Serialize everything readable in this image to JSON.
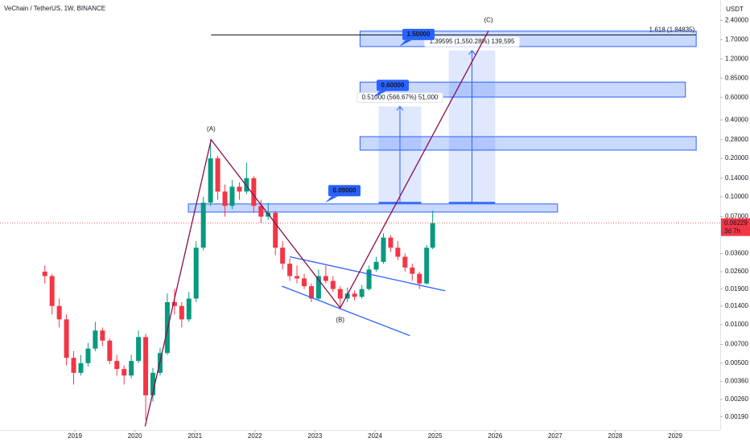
{
  "chart_data": {
    "type": "candlestick",
    "title": "VeChain / TetherUS, 1W, BINANCE",
    "currency": "USDT",
    "log_scale": true,
    "grid": false,
    "up_color": "#089981",
    "down_color": "#f23645",
    "zone_color": "#2962ff",
    "xlim": [
      2017.753,
      2029.75
    ],
    "ylim": [
      0.0015,
      3.47
    ],
    "xticks": [
      2019,
      2020,
      2021,
      2022,
      2023,
      2024,
      2025,
      2026,
      2027,
      2028,
      2029
    ],
    "yticks": [
      {
        "value": 2.4,
        "label": "2.40000"
      },
      {
        "value": 1.7,
        "label": "1.70000"
      },
      {
        "value": 1.2,
        "label": "1.20000"
      },
      {
        "value": 0.85,
        "label": "0.85000"
      },
      {
        "value": 0.6,
        "label": "0.60000"
      },
      {
        "value": 0.4,
        "label": "0.40000"
      },
      {
        "value": 0.28,
        "label": "0.28000"
      },
      {
        "value": 0.2,
        "label": "0.20000"
      },
      {
        "value": 0.14,
        "label": "0.14000"
      },
      {
        "value": 0.1,
        "label": "0.10000"
      },
      {
        "value": 0.07,
        "label": "0.07000"
      },
      {
        "value": 0.036,
        "label": "0.03600"
      },
      {
        "value": 0.026,
        "label": "0.02600"
      },
      {
        "value": 0.019,
        "label": "0.01900"
      },
      {
        "value": 0.014,
        "label": "0.01400"
      },
      {
        "value": 0.01,
        "label": "0.01000"
      },
      {
        "value": 0.007,
        "label": "0.00700"
      },
      {
        "value": 0.005,
        "label": "0.00500"
      },
      {
        "value": 0.0036,
        "label": "0.00360"
      },
      {
        "value": 0.0026,
        "label": "0.00260"
      },
      {
        "value": 0.0019,
        "label": "0.00190"
      }
    ],
    "x": [
      2018.5,
      2018.62,
      2018.74,
      2018.86,
      2018.98,
      2019.1,
      2019.22,
      2019.34,
      2019.46,
      2019.58,
      2019.7,
      2019.82,
      2019.94,
      2020.06,
      2020.18,
      2020.3,
      2020.42,
      2020.54,
      2020.66,
      2020.78,
      2020.9,
      2021.02,
      2021.14,
      2021.26,
      2021.38,
      2021.5,
      2021.62,
      2021.74,
      2021.86,
      2021.98,
      2022.1,
      2022.22,
      2022.34,
      2022.46,
      2022.58,
      2022.7,
      2022.82,
      2022.94,
      2023.06,
      2023.18,
      2023.3,
      2023.42,
      2023.54,
      2023.66,
      2023.78,
      2023.9,
      2024.02,
      2024.14,
      2024.26,
      2024.38,
      2024.5,
      2024.62,
      2024.74,
      2024.86,
      2024.96
    ],
    "open": [
      0.026,
      0.024,
      0.014,
      0.011,
      0.0055,
      0.0042,
      0.005,
      0.0065,
      0.009,
      0.0075,
      0.0052,
      0.0045,
      0.004,
      0.0052,
      0.008,
      0.0028,
      0.0042,
      0.006,
      0.015,
      0.014,
      0.011,
      0.016,
      0.04,
      0.09,
      0.2,
      0.11,
      0.085,
      0.12,
      0.11,
      0.14,
      0.085,
      0.07,
      0.075,
      0.04,
      0.03,
      0.024,
      0.023,
      0.02,
      0.016,
      0.024,
      0.022,
      0.019,
      0.016,
      0.0175,
      0.0165,
      0.019,
      0.027,
      0.031,
      0.048,
      0.04,
      0.034,
      0.028,
      0.025,
      0.021,
      0.04
    ],
    "high": [
      0.029,
      0.025,
      0.016,
      0.012,
      0.0062,
      0.0058,
      0.0072,
      0.0105,
      0.0095,
      0.0078,
      0.0058,
      0.0048,
      0.0058,
      0.009,
      0.0085,
      0.0046,
      0.0066,
      0.0175,
      0.019,
      0.015,
      0.018,
      0.045,
      0.1,
      0.28,
      0.21,
      0.125,
      0.135,
      0.13,
      0.185,
      0.145,
      0.095,
      0.09,
      0.078,
      0.045,
      0.033,
      0.029,
      0.025,
      0.021,
      0.027,
      0.029,
      0.024,
      0.02,
      0.0195,
      0.0185,
      0.0205,
      0.029,
      0.034,
      0.052,
      0.05,
      0.045,
      0.036,
      0.03,
      0.026,
      0.042,
      0.078
    ],
    "low": [
      0.021,
      0.012,
      0.0095,
      0.0048,
      0.0034,
      0.004,
      0.0047,
      0.0062,
      0.0068,
      0.0049,
      0.004,
      0.0034,
      0.0038,
      0.005,
      0.0018,
      0.0025,
      0.004,
      0.0058,
      0.012,
      0.0095,
      0.0105,
      0.015,
      0.038,
      0.085,
      0.095,
      0.07,
      0.08,
      0.095,
      0.105,
      0.075,
      0.062,
      0.066,
      0.035,
      0.027,
      0.022,
      0.021,
      0.019,
      0.015,
      0.0155,
      0.021,
      0.018,
      0.0135,
      0.015,
      0.0155,
      0.016,
      0.0185,
      0.026,
      0.03,
      0.037,
      0.032,
      0.026,
      0.022,
      0.019,
      0.0205,
      0.039
    ],
    "close": [
      0.024,
      0.014,
      0.011,
      0.0055,
      0.0042,
      0.005,
      0.0065,
      0.009,
      0.0075,
      0.0052,
      0.0045,
      0.004,
      0.0052,
      0.008,
      0.0028,
      0.0042,
      0.006,
      0.015,
      0.014,
      0.011,
      0.016,
      0.04,
      0.09,
      0.2,
      0.11,
      0.085,
      0.12,
      0.11,
      0.14,
      0.085,
      0.07,
      0.075,
      0.04,
      0.03,
      0.024,
      0.023,
      0.02,
      0.016,
      0.024,
      0.022,
      0.019,
      0.016,
      0.0175,
      0.0165,
      0.019,
      0.027,
      0.031,
      0.048,
      0.04,
      0.034,
      0.028,
      0.025,
      0.021,
      0.04,
      0.06229
    ],
    "last_price": {
      "value": 0.06229,
      "countdown": "3d 7h"
    },
    "zones": [
      {
        "x0": 2020.89,
        "x1": 2027.04,
        "low": 0.076,
        "high": 0.088
      },
      {
        "x0": 2023.75,
        "x1": 2029.35,
        "low": 0.232,
        "high": 0.296
      },
      {
        "x0": 2023.75,
        "x1": 2029.17,
        "low": 0.603,
        "high": 0.79
      },
      {
        "x0": 2023.75,
        "x1": 2029.35,
        "low": 1.5,
        "high": 1.98
      }
    ],
    "level_labels": [
      {
        "value": 1.5,
        "label": "1.50000"
      },
      {
        "value": 0.6,
        "label": "0.60000"
      },
      {
        "value": 0.09,
        "label": "0.09000"
      }
    ],
    "fib": {
      "label": "1.618 (1.84835)",
      "value": 1.84835,
      "x": [
        2021.27,
        2029.35
      ]
    },
    "measures": [
      {
        "x0": 2024.06,
        "x1": 2024.77,
        "from": 0.09,
        "to": 0.51,
        "label": "0.51000 (566.67%) 51,000"
      },
      {
        "x0": 2025.23,
        "x1": 2026.0,
        "from": 0.09,
        "to": 1.39595,
        "label": "1.39595 (1,550.28%) 139,595"
      }
    ],
    "wave": {
      "x": [
        2020.17,
        2021.27,
        2023.42,
        2025.89
      ],
      "values": [
        0.0016,
        0.28,
        0.0135,
        1.99
      ],
      "labels": [
        null,
        "(A)",
        "(B)",
        "(C)"
      ]
    },
    "channel": [
      {
        "x": [
          2022.58,
          2025.17
        ],
        "values": [
          0.034,
          0.0184
        ]
      },
      {
        "x": [
          2022.45,
          2024.58
        ],
        "values": [
          0.02,
          0.0082
        ]
      }
    ]
  }
}
